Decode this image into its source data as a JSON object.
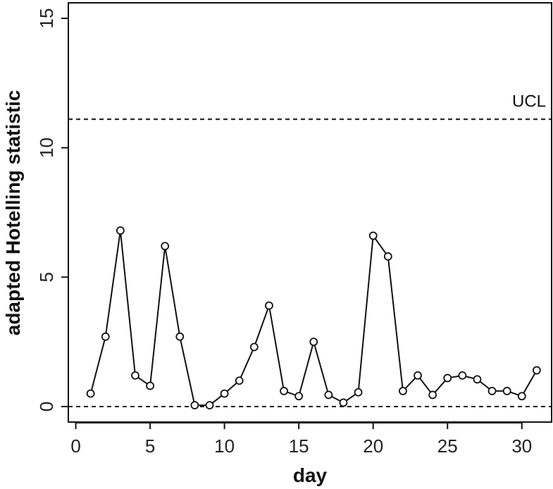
{
  "chart_data": {
    "type": "line",
    "title": "",
    "xlabel": "day",
    "ylabel": "adapted Hotelling statistic",
    "xlim": [
      -0.5,
      32
    ],
    "ylim": [
      -0.6,
      15.6
    ],
    "xticks": [
      0,
      5,
      10,
      15,
      20,
      25,
      30
    ],
    "yticks": [
      0,
      5,
      10,
      15
    ],
    "grid": false,
    "series": [
      {
        "x": [
          1,
          2,
          3,
          4,
          5,
          6,
          7,
          8,
          9,
          10,
          11,
          12,
          13,
          14,
          15,
          16,
          17,
          18,
          19,
          20,
          21,
          22,
          23,
          24,
          25,
          26,
          27,
          28,
          29,
          30,
          31
        ],
        "values": [
          0.5,
          2.7,
          6.8,
          1.2,
          0.8,
          6.2,
          2.7,
          0.05,
          0.05,
          0.5,
          1.0,
          2.3,
          3.9,
          0.6,
          0.4,
          2.5,
          0.45,
          0.15,
          0.55,
          6.6,
          5.8,
          0.6,
          1.2,
          0.45,
          1.1,
          1.2,
          1.05,
          0.6,
          0.6,
          0.4,
          1.4
        ],
        "color": "#111111",
        "marker": "open-circle"
      }
    ],
    "reference_lines": [
      {
        "label": "UCL",
        "y": 11.1,
        "style": "dashed"
      },
      {
        "label": "",
        "y": 0,
        "style": "dashed"
      }
    ]
  }
}
